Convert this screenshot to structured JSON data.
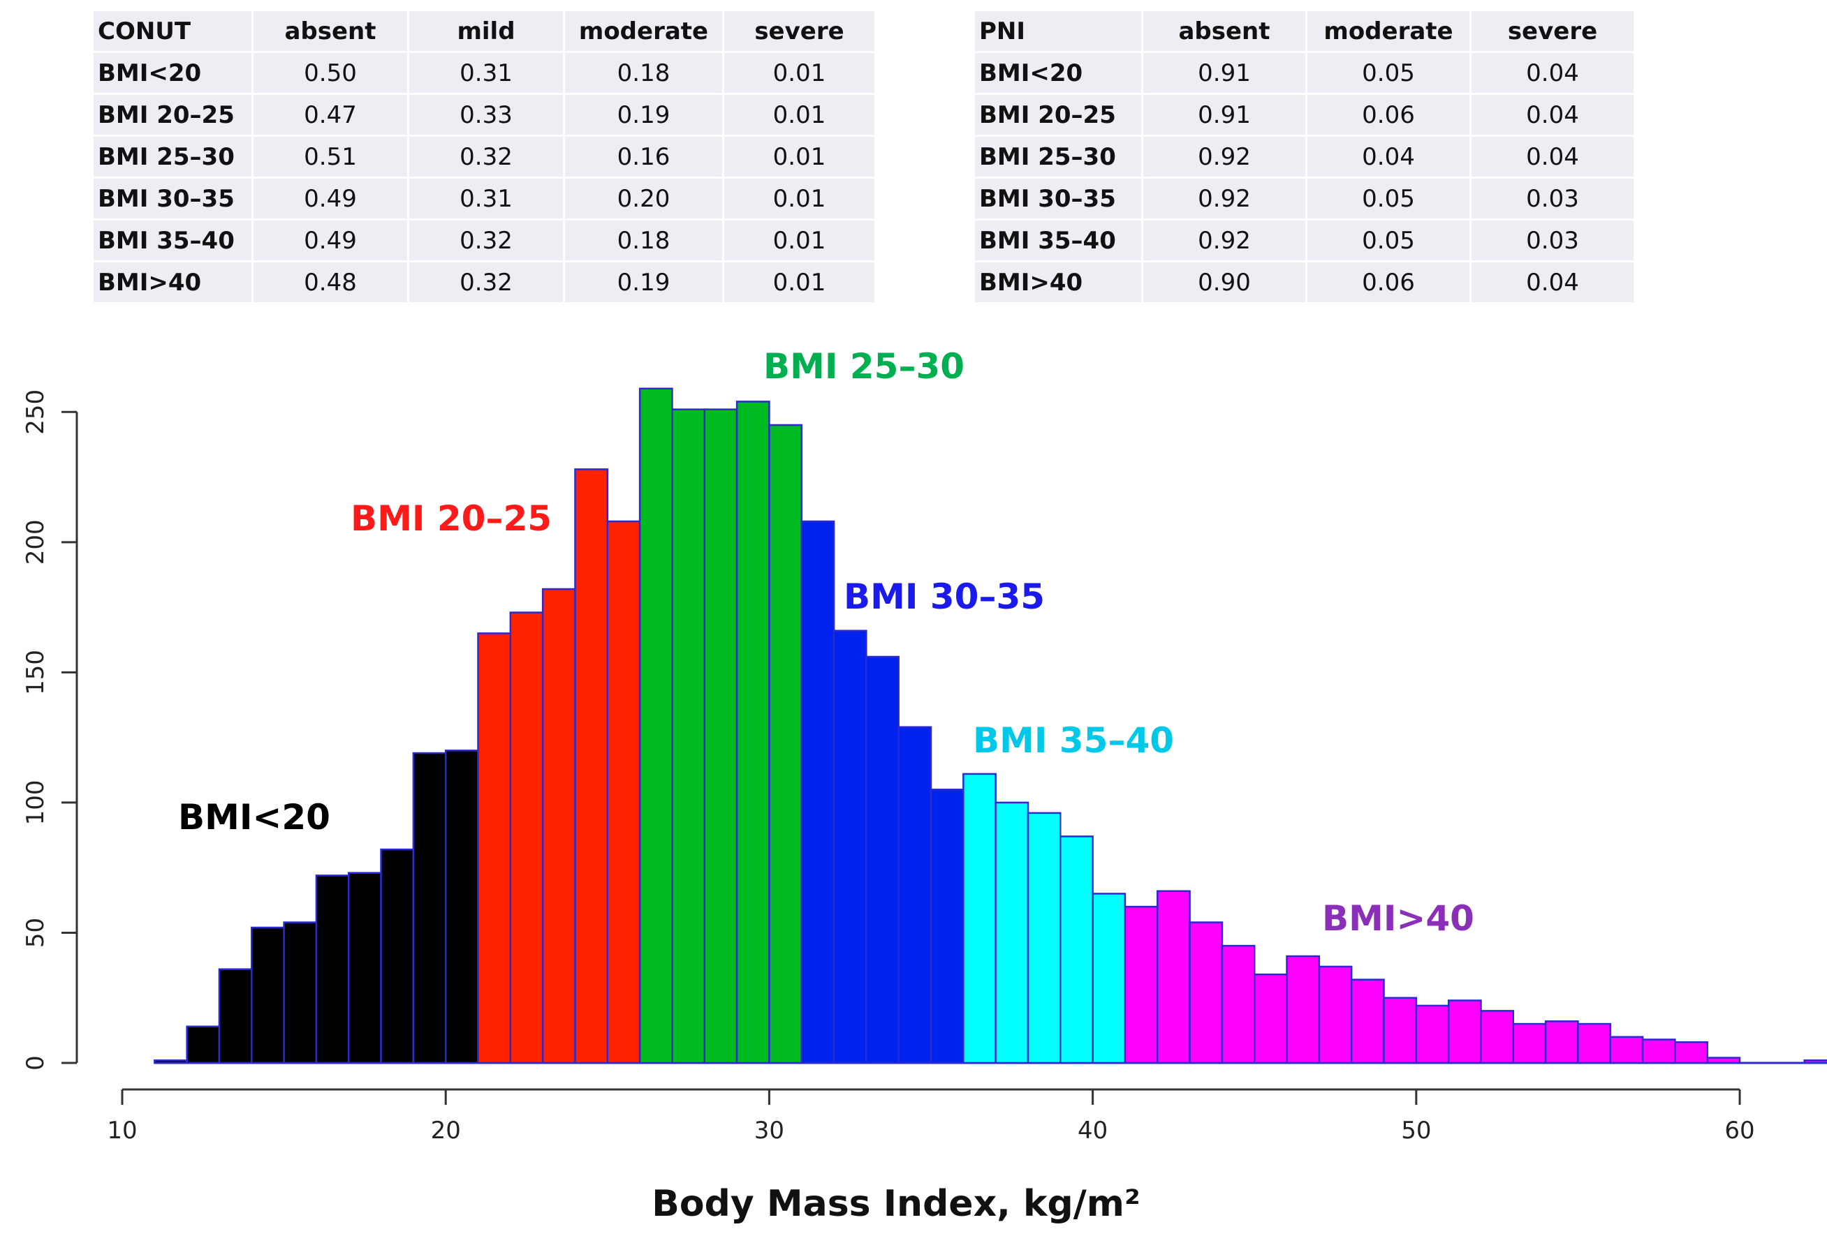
{
  "tables": [
    {
      "id": "conut",
      "header": [
        "CONUT",
        "absent",
        "mild",
        "moderate",
        "severe"
      ],
      "rows": [
        [
          "BMI<20",
          "0.50",
          "0.31",
          "0.18",
          "0.01"
        ],
        [
          "BMI 20–25",
          "0.47",
          "0.33",
          "0.19",
          "0.01"
        ],
        [
          "BMI 25–30",
          "0.51",
          "0.32",
          "0.16",
          "0.01"
        ],
        [
          "BMI 30–35",
          "0.49",
          "0.31",
          "0.20",
          "0.01"
        ],
        [
          "BMI 35–40",
          "0.49",
          "0.32",
          "0.18",
          "0.01"
        ],
        [
          "BMI>40",
          "0.48",
          "0.32",
          "0.19",
          "0.01"
        ]
      ]
    },
    {
      "id": "pni",
      "header": [
        "PNI",
        "absent",
        "moderate",
        "severe"
      ],
      "rows": [
        [
          "BMI<20",
          "0.91",
          "0.05",
          "0.04"
        ],
        [
          "BMI 20–25",
          "0.91",
          "0.06",
          "0.04"
        ],
        [
          "BMI 25–30",
          "0.92",
          "0.04",
          "0.04"
        ],
        [
          "BMI 30–35",
          "0.92",
          "0.05",
          "0.03"
        ],
        [
          "BMI 35–40",
          "0.92",
          "0.05",
          "0.03"
        ],
        [
          "BMI>40",
          "0.90",
          "0.06",
          "0.04"
        ]
      ]
    }
  ],
  "chart_data": {
    "type": "bar",
    "subtype": "histogram",
    "xlabel": "Body Mass Index, kg/m²",
    "ylabel": "",
    "xlim": [
      10,
      63
    ],
    "ylim": [
      0,
      260
    ],
    "x_ticks": [
      10,
      20,
      30,
      40,
      50,
      60
    ],
    "y_ticks": [
      0,
      50,
      100,
      150,
      200,
      250
    ],
    "grid": false,
    "bin_width": 1,
    "bin_starts": [
      11,
      12,
      13,
      14,
      15,
      16,
      17,
      18,
      19,
      20,
      21,
      22,
      23,
      24,
      25,
      26,
      27,
      28,
      29,
      30,
      31,
      32,
      33,
      34,
      35,
      36,
      37,
      38,
      39,
      40,
      41,
      42,
      43,
      44,
      45,
      46,
      47,
      48,
      49,
      50,
      51,
      52,
      53,
      54,
      55,
      56,
      57,
      58,
      59,
      60,
      61,
      62
    ],
    "counts": [
      1,
      14,
      36,
      52,
      54,
      72,
      73,
      82,
      119,
      120,
      165,
      173,
      182,
      228,
      208,
      259,
      251,
      251,
      254,
      245,
      208,
      166,
      156,
      129,
      105,
      111,
      100,
      96,
      87,
      65,
      60,
      66,
      54,
      45,
      34,
      41,
      37,
      32,
      25,
      22,
      24,
      20,
      15,
      16,
      15,
      10,
      9,
      8,
      2,
      0,
      0,
      1
    ],
    "series": [
      {
        "name": "BMI<20",
        "from": 11,
        "to": 21,
        "color": "#000000",
        "label_color": "#000000"
      },
      {
        "name": "BMI 20–25",
        "from": 21,
        "to": 26,
        "color": "#ff2200",
        "label_color": "#ff1a1a"
      },
      {
        "name": "BMI 25–30",
        "from": 26,
        "to": 31,
        "color": "#00bb22",
        "label_color": "#00b050"
      },
      {
        "name": "BMI 30–35",
        "from": 31,
        "to": 36,
        "color": "#0022ee",
        "label_color": "#1a1aee"
      },
      {
        "name": "BMI 35–40",
        "from": 36,
        "to": 41,
        "color": "#00ffff",
        "label_color": "#00c8e8"
      },
      {
        "name": "BMI>40",
        "from": 41,
        "to": 63,
        "color": "#ff00ff",
        "label_color": "#8a2fb8"
      }
    ],
    "edge_color": "#2a2ad0"
  }
}
